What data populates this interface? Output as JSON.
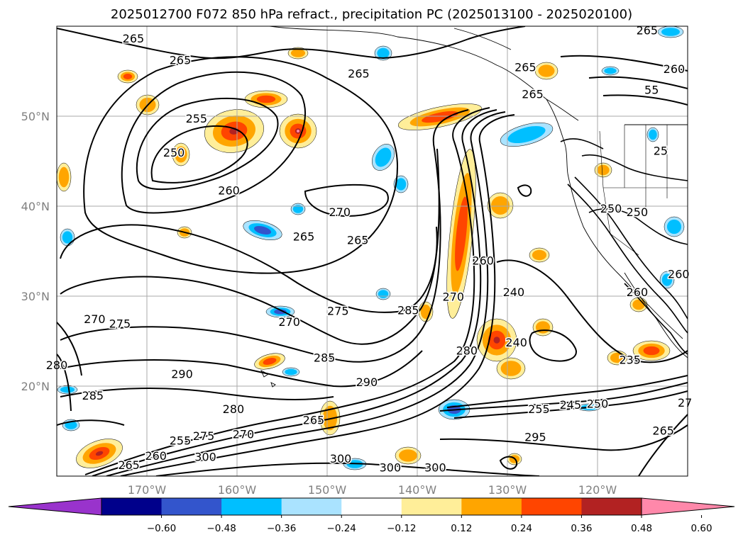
{
  "chart_data": {
    "type": "contour-map",
    "title": "2025012700 F072 850 hPa refract., precipitation PC (2025013100 - 2025020100)",
    "xlim": [
      -180,
      -110
    ],
    "ylim": [
      10,
      60
    ],
    "x_ticks": [
      {
        "value": -170,
        "label": "170°W"
      },
      {
        "value": -160,
        "label": "160°W"
      },
      {
        "value": -150,
        "label": "150°W"
      },
      {
        "value": -140,
        "label": "140°W"
      },
      {
        "value": -130,
        "label": "130°W"
      },
      {
        "value": -120,
        "label": "120°W"
      }
    ],
    "y_ticks": [
      {
        "value": 20,
        "label": "20°N"
      },
      {
        "value": 30,
        "label": "30°N"
      },
      {
        "value": 40,
        "label": "40°N"
      },
      {
        "value": 50,
        "label": "50°N"
      }
    ],
    "grid": true,
    "colorbar": {
      "levels": [
        -0.72,
        -0.6,
        -0.48,
        -0.36,
        -0.24,
        -0.12,
        0.12,
        0.24,
        0.36,
        0.48,
        0.6,
        0.72
      ],
      "tick_labels": [
        "−0.60",
        "−0.48",
        "−0.36",
        "−0.24",
        "−0.12",
        "0.12",
        "0.24",
        "0.36",
        "0.48",
        "0.60"
      ],
      "under_color": "#9933cc",
      "over_color": "#ff88aa",
      "colors": [
        "#9933cc",
        "#00008b",
        "#3355cc",
        "#00bfff",
        "#aae3ff",
        "#ffffff",
        "#ffee99",
        "#ffa500",
        "#ff4500",
        "#b22222",
        "#ff88aa"
      ]
    },
    "contour_labels": [
      {
        "lon": -171.5,
        "lat": 58.2,
        "text": "265"
      },
      {
        "lon": -166.3,
        "lat": 55.8,
        "text": "265"
      },
      {
        "lon": -146.5,
        "lat": 54.3,
        "text": "265"
      },
      {
        "lon": -114.5,
        "lat": 59.1,
        "text": "265"
      },
      {
        "lon": -111.5,
        "lat": 54.8,
        "text": "260"
      },
      {
        "lon": -164.5,
        "lat": 49.3,
        "text": "255"
      },
      {
        "lon": -167.0,
        "lat": 45.5,
        "text": "250"
      },
      {
        "lon": -160.9,
        "lat": 41.3,
        "text": "260"
      },
      {
        "lon": -148.6,
        "lat": 38.9,
        "text": "270"
      },
      {
        "lon": -146.6,
        "lat": 35.8,
        "text": "265"
      },
      {
        "lon": -152.6,
        "lat": 36.2,
        "text": "265"
      },
      {
        "lon": -148.8,
        "lat": 27.9,
        "text": "275"
      },
      {
        "lon": -154.2,
        "lat": 26.7,
        "text": "270"
      },
      {
        "lon": -150.3,
        "lat": 22.7,
        "text": "285"
      },
      {
        "lon": -141.0,
        "lat": 28.0,
        "text": "285"
      },
      {
        "lon": -136.0,
        "lat": 29.5,
        "text": "270"
      },
      {
        "lon": -132.7,
        "lat": 33.5,
        "text": "260"
      },
      {
        "lon": -134.5,
        "lat": 23.5,
        "text": "280"
      },
      {
        "lon": -145.6,
        "lat": 20.0,
        "text": "290"
      },
      {
        "lon": -151.5,
        "lat": 15.8,
        "text": "265"
      },
      {
        "lon": -166.1,
        "lat": 20.9,
        "text": "290"
      },
      {
        "lon": -160.4,
        "lat": 17.0,
        "text": "280"
      },
      {
        "lon": -173.0,
        "lat": 26.5,
        "text": "275"
      },
      {
        "lon": -175.8,
        "lat": 27.0,
        "text": "270"
      },
      {
        "lon": -176.0,
        "lat": 18.5,
        "text": "285"
      },
      {
        "lon": -180.0,
        "lat": 21.9,
        "text": "280"
      },
      {
        "lon": -169.0,
        "lat": 11.8,
        "text": "260"
      },
      {
        "lon": -166.3,
        "lat": 13.5,
        "text": "255"
      },
      {
        "lon": -163.7,
        "lat": 14.0,
        "text": "275"
      },
      {
        "lon": -159.3,
        "lat": 14.2,
        "text": "270"
      },
      {
        "lon": -172.0,
        "lat": 10.8,
        "text": "265"
      },
      {
        "lon": -163.5,
        "lat": 11.7,
        "text": "300"
      },
      {
        "lon": -148.5,
        "lat": 11.5,
        "text": "300"
      },
      {
        "lon": -143.0,
        "lat": 10.5,
        "text": "300"
      },
      {
        "lon": -138.0,
        "lat": 10.5,
        "text": "300"
      },
      {
        "lon": -126.9,
        "lat": 13.9,
        "text": "295"
      },
      {
        "lon": -129.3,
        "lat": 30.0,
        "text": "240"
      },
      {
        "lon": -129.0,
        "lat": 24.4,
        "text": "240"
      },
      {
        "lon": -126.5,
        "lat": 17.0,
        "text": "255"
      },
      {
        "lon": -123.0,
        "lat": 17.5,
        "text": "245"
      },
      {
        "lon": -120.0,
        "lat": 17.6,
        "text": "250"
      },
      {
        "lon": -116.4,
        "lat": 22.5,
        "text": "235"
      },
      {
        "lon": -112.7,
        "lat": 14.6,
        "text": "265"
      },
      {
        "lon": -110.3,
        "lat": 17.7,
        "text": "27"
      },
      {
        "lon": -118.5,
        "lat": 39.3,
        "text": "250"
      },
      {
        "lon": -115.6,
        "lat": 38.9,
        "text": "250"
      },
      {
        "lon": -115.6,
        "lat": 30.0,
        "text": "260"
      },
      {
        "lon": -111.0,
        "lat": 32.0,
        "text": "260"
      },
      {
        "lon": -128.0,
        "lat": 55.0,
        "text": "265"
      },
      {
        "lon": -127.2,
        "lat": 52.0,
        "text": "265"
      },
      {
        "lon": -114.0,
        "lat": 52.5,
        "text": "55"
      },
      {
        "lon": -113.0,
        "lat": 45.7,
        "text": "25"
      }
    ]
  }
}
